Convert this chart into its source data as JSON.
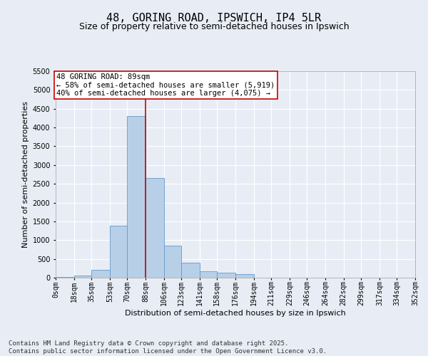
{
  "title_line1": "48, GORING ROAD, IPSWICH, IP4 5LR",
  "title_line2": "Size of property relative to semi-detached houses in Ipswich",
  "xlabel": "Distribution of semi-detached houses by size in Ipswich",
  "ylabel": "Number of semi-detached properties",
  "annotation_title": "48 GORING ROAD: 89sqm",
  "annotation_line2": "← 58% of semi-detached houses are smaller (5,919)",
  "annotation_line3": "40% of semi-detached houses are larger (4,075) →",
  "footer_line1": "Contains HM Land Registry data © Crown copyright and database right 2025.",
  "footer_line2": "Contains public sector information licensed under the Open Government Licence v3.0.",
  "bin_edges": [
    0,
    18,
    35,
    53,
    70,
    88,
    106,
    123,
    141,
    158,
    176,
    194,
    211,
    229,
    246,
    264,
    282,
    299,
    317,
    334,
    352
  ],
  "bin_labels": [
    "0sqm",
    "18sqm",
    "35sqm",
    "53sqm",
    "70sqm",
    "88sqm",
    "106sqm",
    "123sqm",
    "141sqm",
    "158sqm",
    "176sqm",
    "194sqm",
    "211sqm",
    "229sqm",
    "246sqm",
    "264sqm",
    "282sqm",
    "299sqm",
    "317sqm",
    "334sqm",
    "352sqm"
  ],
  "bar_heights": [
    10,
    50,
    200,
    1380,
    4300,
    2650,
    850,
    400,
    170,
    130,
    100,
    5,
    5,
    0,
    0,
    0,
    0,
    0,
    0,
    0
  ],
  "bar_color": "#b8cfe8",
  "bar_edge_color": "#6699cc",
  "highlight_line_color": "#cc0000",
  "highlight_bin_edge": 5,
  "ylim": [
    0,
    5500
  ],
  "yticks": [
    0,
    500,
    1000,
    1500,
    2000,
    2500,
    3000,
    3500,
    4000,
    4500,
    5000,
    5500
  ],
  "bg_color": "#e8edf5",
  "plot_bg_color": "#e8edf5",
  "grid_color": "#ffffff",
  "annotation_box_facecolor": "#ffffff",
  "annotation_box_edgecolor": "#cc0000",
  "title_fontsize": 11,
  "subtitle_fontsize": 9,
  "axis_label_fontsize": 8,
  "tick_fontsize": 7,
  "annotation_fontsize": 7.5,
  "footer_fontsize": 6.5
}
